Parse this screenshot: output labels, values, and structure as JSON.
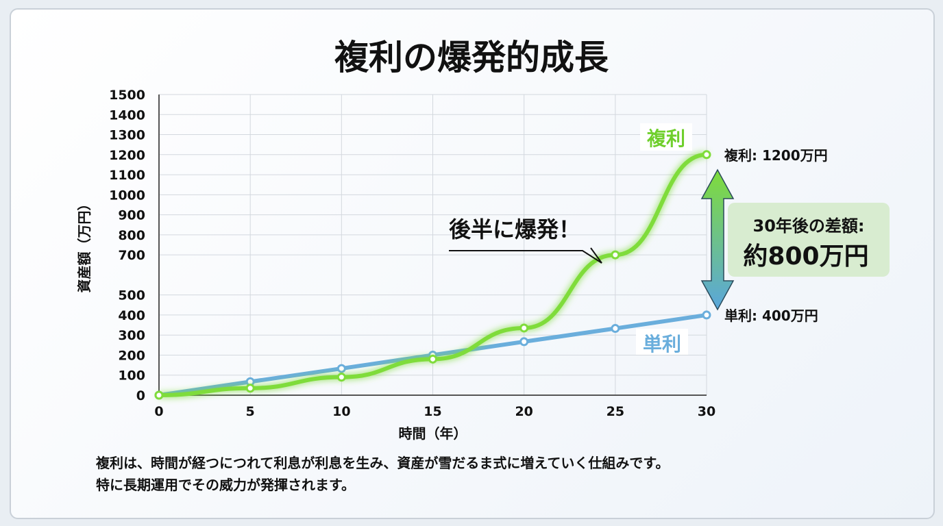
{
  "title": "複利の爆発的成長",
  "chart_data": {
    "type": "line",
    "title": "複利の爆発的成長",
    "xlabel": "時間（年）",
    "ylabel": "資産額（万円）",
    "x": [
      0,
      5,
      10,
      15,
      20,
      25,
      30
    ],
    "xlim": [
      0,
      30
    ],
    "ylim": [
      0,
      1500
    ],
    "yticks": [
      0,
      100,
      200,
      300,
      400,
      500,
      700,
      800,
      900,
      1000,
      1100,
      1200,
      1300,
      1400,
      1500
    ],
    "xticks": [
      0,
      5,
      10,
      15,
      20,
      25,
      30
    ],
    "grid": true,
    "series": [
      {
        "name": "単利",
        "color": "#6aaedc",
        "values": [
          0,
          67,
          133,
          200,
          267,
          333,
          400
        ]
      },
      {
        "name": "複利",
        "color": "#7fdc3a",
        "values": [
          0,
          35,
          90,
          180,
          335,
          700,
          1200
        ]
      }
    ],
    "annotations": {
      "compound_end": "複利: 1200万円",
      "simple_end": "単利: 400万円",
      "burst": "後半に爆発！",
      "diff_line1": "30年後の差額:",
      "diff_line2": "約800万円"
    }
  },
  "description": [
    "複利は、時間が経つにつれて利息が利息を生み、資産が雪だるま式に増えていく仕組みです。",
    "特に長期運用でその威力が発揮されます。"
  ]
}
